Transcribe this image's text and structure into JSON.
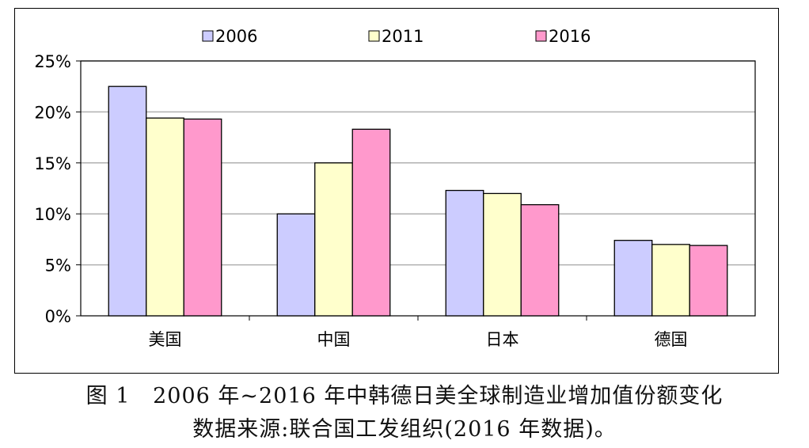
{
  "chart_data": {
    "type": "bar",
    "categories": [
      "美国",
      "中国",
      "日本",
      "德国"
    ],
    "series": [
      {
        "name": "2006",
        "color": "#ccccff",
        "values": [
          22.5,
          10.0,
          12.3,
          7.4
        ]
      },
      {
        "name": "2011",
        "color": "#ffffcc",
        "values": [
          19.4,
          15.0,
          12.0,
          7.0
        ]
      },
      {
        "name": "2016",
        "color": "#ff99cc",
        "values": [
          19.3,
          18.3,
          10.9,
          6.9
        ]
      }
    ],
    "ylim": [
      0,
      25
    ],
    "yticks": [
      "0%",
      "5%",
      "10%",
      "15%",
      "20%",
      "25%"
    ],
    "ytick_values": [
      0,
      5,
      10,
      15,
      20,
      25
    ],
    "grid": true,
    "legend_position": "top"
  },
  "caption": {
    "line1": "图 1   2006 年~2016 年中韩德日美全球制造业增加值份额变化",
    "line2": "数据来源:联合国工发组织(2016 年数据)。"
  }
}
